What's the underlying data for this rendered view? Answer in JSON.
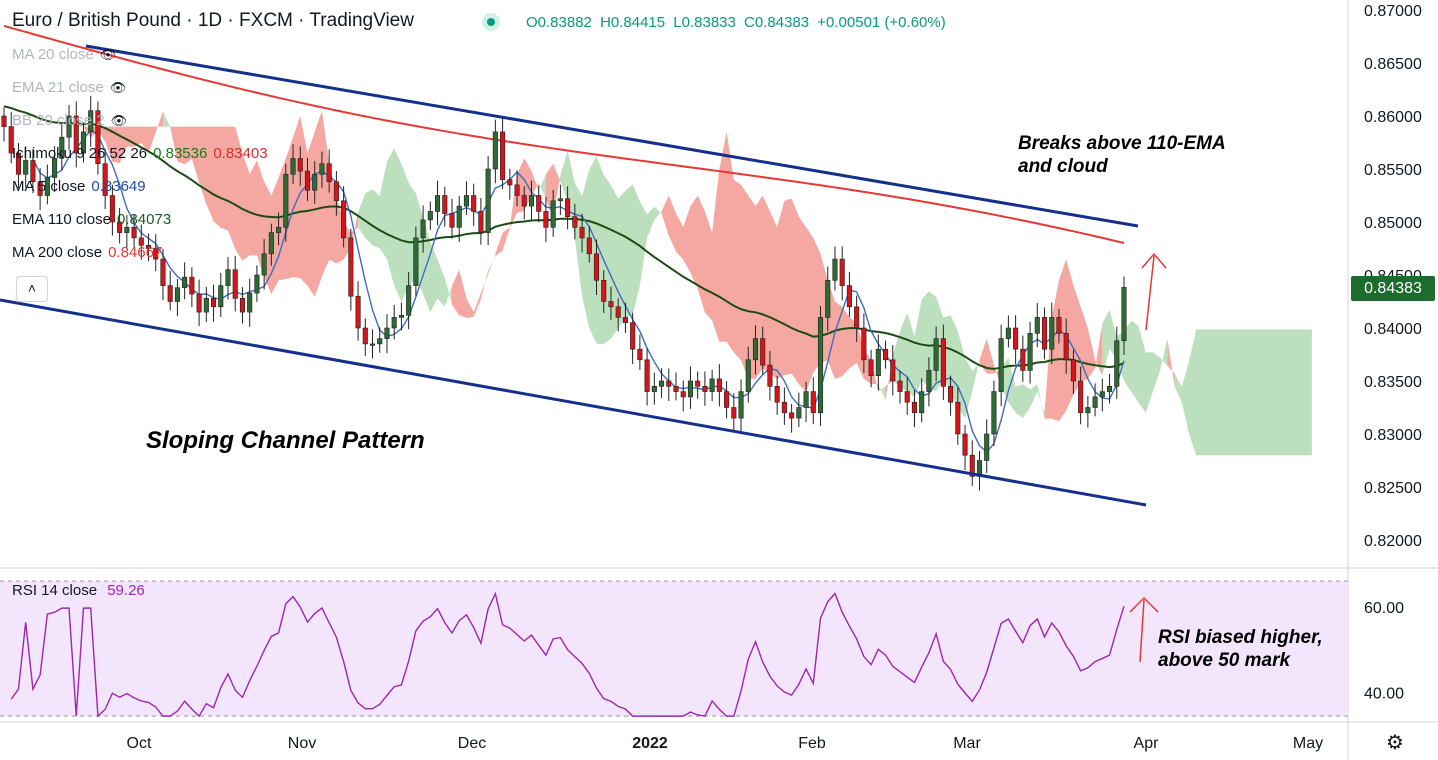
{
  "header": {
    "title": "Euro / British Pound · 1D · FXCM · TradingView",
    "ohlc": {
      "open": "O0.83882",
      "high": "H0.84415",
      "low": "L0.83833",
      "close": "C0.84383",
      "change": "+0.00501 (+0.60%)"
    }
  },
  "legend": [
    {
      "label": "MA 20 close",
      "value": "",
      "color": "#787b86",
      "hidden": true
    },
    {
      "label": "EMA 21 close",
      "value": "",
      "color": "#787b86",
      "hidden": true
    },
    {
      "label": "BB 20 close 2",
      "value": "",
      "color": "#787b86",
      "hidden": true
    },
    {
      "label": "Ichimoku 9 26 52 26",
      "value": "0.83536",
      "value2": "0.83403",
      "color": "#1b7b16",
      "color2": "#d32f2f"
    },
    {
      "label": "MA 5 close",
      "value": "0.83649",
      "color": "#2050a0"
    },
    {
      "label": "EMA 110 close",
      "value": "0.84073",
      "color": "#1b5e20"
    },
    {
      "label": "MA 200 close",
      "value": "0.84667",
      "color": "#e53935"
    }
  ],
  "rsi_legend": {
    "label": "RSI 14 close",
    "value": "59.26"
  },
  "last_price": "0.84383",
  "annotations": {
    "breaks_line1": "Breaks above 110-EMA",
    "breaks_line2": "and cloud",
    "channel": "Sloping Channel Pattern",
    "rsi_line1": "RSI biased higher,",
    "rsi_line2": "above 50 mark"
  },
  "colors": {
    "up": "#2e6b34",
    "down": "#d8141b",
    "channel": "#142f8c",
    "ma200": "#e53935",
    "ema110": "#1b4d13",
    "ma5": "#3f6cc0",
    "rsi": "#9c27b0",
    "rsi_band": "#f3e5fc",
    "cloud_bear": "#f28b82",
    "cloud_bull": "#a5d6a7"
  },
  "chart_data": {
    "type": "candlestick",
    "symbol": "EURGBP",
    "x_ticks": [
      "Oct",
      "Nov",
      "Dec",
      "2022",
      "Feb",
      "Mar",
      "Apr",
      "May"
    ],
    "y_ticks": [
      "0.87000",
      "0.86500",
      "0.86000",
      "0.85500",
      "0.85000",
      "0.84500",
      "0.84000",
      "0.83500",
      "0.83000",
      "0.82500",
      "0.82000"
    ],
    "ylim": [
      0.818,
      0.872
    ],
    "rsi_ticks": [
      "60.00",
      "40.00"
    ],
    "rsi_range": [
      25,
      75
    ],
    "closes": [
      0.859,
      0.8565,
      0.8545,
      0.8558,
      0.8538,
      0.8525,
      0.8542,
      0.856,
      0.858,
      0.86,
      0.8565,
      0.8585,
      0.8605,
      0.8555,
      0.8525,
      0.85,
      0.849,
      0.8495,
      0.8485,
      0.8478,
      0.8475,
      0.8465,
      0.844,
      0.8425,
      0.8438,
      0.8448,
      0.8432,
      0.8415,
      0.8428,
      0.842,
      0.844,
      0.8455,
      0.8428,
      0.8415,
      0.8433,
      0.845,
      0.847,
      0.849,
      0.8495,
      0.8545,
      0.856,
      0.8548,
      0.853,
      0.8545,
      0.8555,
      0.8538,
      0.852,
      0.8485,
      0.843,
      0.84,
      0.8385,
      0.8385,
      0.839,
      0.84,
      0.841,
      0.8412,
      0.844,
      0.8485,
      0.8502,
      0.851,
      0.8525,
      0.8508,
      0.8495,
      0.8515,
      0.8525,
      0.851,
      0.849,
      0.855,
      0.8585,
      0.854,
      0.8535,
      0.8525,
      0.8515,
      0.8525,
      0.851,
      0.8495,
      0.852,
      0.8522,
      0.8505,
      0.8495,
      0.8485,
      0.847,
      0.8445,
      0.8425,
      0.842,
      0.841,
      0.8405,
      0.838,
      0.837,
      0.834,
      0.8345,
      0.835,
      0.8345,
      0.834,
      0.8335,
      0.835,
      0.8345,
      0.834,
      0.8352,
      0.834,
      0.8325,
      0.8315,
      0.834,
      0.837,
      0.839,
      0.8365,
      0.8345,
      0.833,
      0.832,
      0.8315,
      0.8325,
      0.834,
      0.832,
      0.841,
      0.8445,
      0.8465,
      0.844,
      0.842,
      0.84,
      0.837,
      0.8355,
      0.838,
      0.837,
      0.835,
      0.834,
      0.833,
      0.832,
      0.834,
      0.836,
      0.839,
      0.8345,
      0.833,
      0.83,
      0.828,
      0.826,
      0.8275,
      0.83,
      0.834,
      0.839,
      0.84,
      0.838,
      0.836,
      0.8395,
      0.841,
      0.838,
      0.841,
      0.8395,
      0.837,
      0.835,
      0.832,
      0.8325,
      0.8335,
      0.834,
      0.8345,
      0.8388,
      0.84383
    ],
    "last_close": 0.84383,
    "rsi_last": 59.26
  }
}
